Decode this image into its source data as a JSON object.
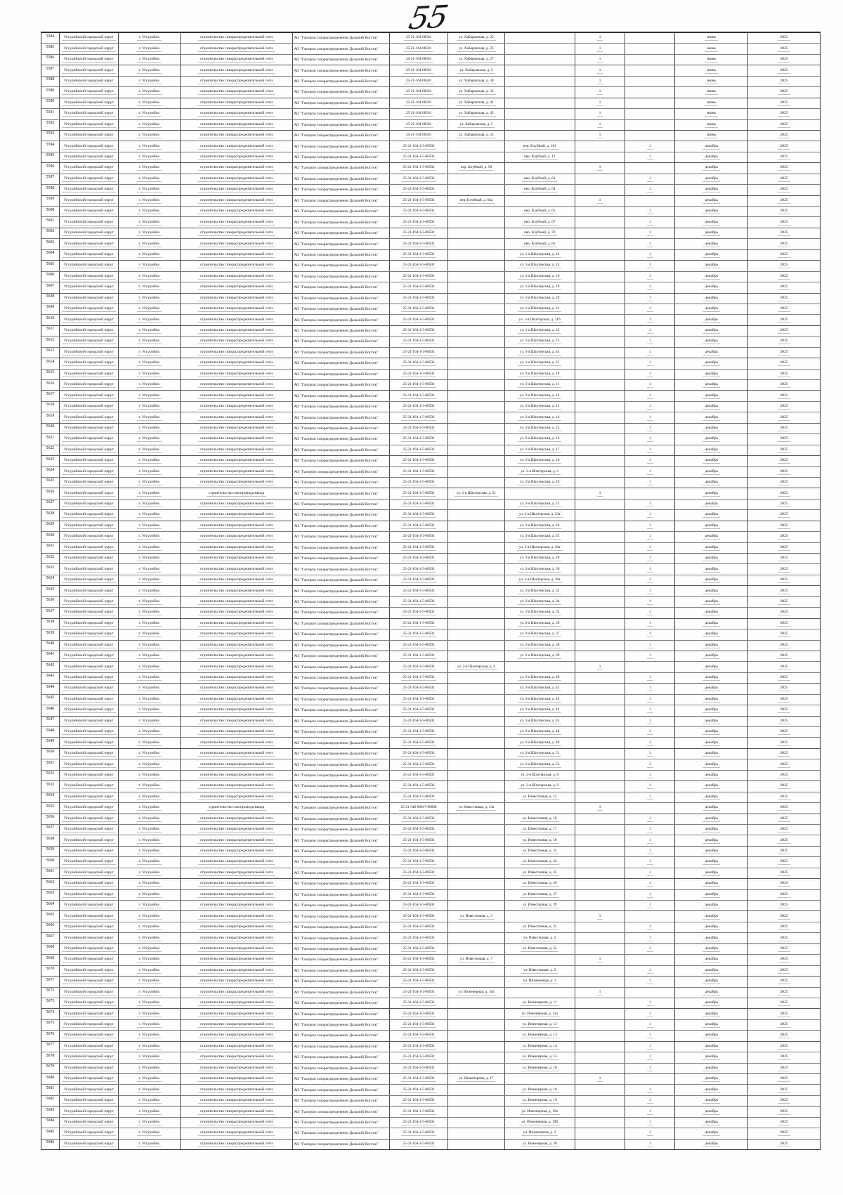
{
  "page_number": "55",
  "table": {
    "shared": {
      "district": "Уссурийский городской округ",
      "city": "г. Уссурийск",
      "work_default": "строительство газораспределительной сети",
      "work_alt": "строительство газопровода-ввода",
      "organization": "АО \"Газпром газораспределение Дальний Восток\"",
      "count": "1"
    },
    "row_fields": [
      "number",
      "code",
      "address",
      "address_column_a_or_b",
      "month",
      "year",
      "work_variant"
    ],
    "rows": [
      [
        "5584",
        "25-21-164-00501",
        "ул. Хабаровская, д. 22",
        "a",
        "июнь",
        "2025"
      ],
      [
        "5585",
        "25-21-164-00501",
        "ул. Хабаровская, д. 25",
        "a",
        "июнь",
        "2025"
      ],
      [
        "5586",
        "25-21-164-00501",
        "ул. Хабаровская, д. 27",
        "a",
        "июнь",
        "2025"
      ],
      [
        "5587",
        "25-21-164-00501",
        "ул. Хабаровская, д. 3",
        "a",
        "июнь",
        "2025"
      ],
      [
        "5588",
        "25-21-164-00501",
        "ул. Хабаровская, д. 30",
        "a",
        "июнь",
        "2025"
      ],
      [
        "5589",
        "25-21-164-00501",
        "ул. Хабаровская, д. 35",
        "a",
        "июнь",
        "2025"
      ],
      [
        "5590",
        "25-21-164-00501",
        "ул. Хабаровская, д. 41",
        "a",
        "июнь",
        "2025"
      ],
      [
        "5591",
        "25-21-164-00501",
        "ул. Хабаровская, д. 45",
        "a",
        "июнь",
        "2025"
      ],
      [
        "5592",
        "25-21-164-00501",
        "ул. Хабаровская, д. 5",
        "a",
        "июнь",
        "2025"
      ],
      [
        "5593",
        "25-21-164-00501",
        "ул. Хабаровская, д. 55",
        "a",
        "июнь",
        "2025"
      ],
      [
        "5594",
        "25-21-164-1-5-00502",
        "пер. Клубный, д. 101",
        "b",
        "декабрь",
        "2025"
      ],
      [
        "5595",
        "25-21-164-1-5-00502",
        "пер. Клубный, д. 12",
        "b",
        "декабрь",
        "2025"
      ],
      [
        "5596",
        "25-21-164-1-5-00502",
        "пер. Клубный, д. 58",
        "a",
        "декабрь",
        "2025"
      ],
      [
        "5597",
        "25-21-164-1-5-00502",
        "пер. Клубный, д. 63",
        "b",
        "декабрь",
        "2025"
      ],
      [
        "5598",
        "25-21-164-1-5-00502",
        "пер. Клубный, д. 64",
        "b",
        "декабрь",
        "2025"
      ],
      [
        "5599",
        "25-21-164-1-5-00502",
        "пер. Клубный, д. 64а",
        "a",
        "декабрь",
        "2025"
      ],
      [
        "5600",
        "25-21-164-1-5-00502",
        "пер. Клубный, д. 65",
        "b",
        "декабрь",
        "2025"
      ],
      [
        "5601",
        "25-21-164-1-5-00502",
        "пер. Клубный, д. 67",
        "b",
        "декабрь",
        "2025"
      ],
      [
        "5602",
        "25-21-164-1-5-00502",
        "пер. Клубный, д. 70",
        "b",
        "декабрь",
        "2025"
      ],
      [
        "5603",
        "25-21-164-1-5-00502",
        "пер. Клубный, д. 81",
        "b",
        "декабрь",
        "2025"
      ],
      [
        "5604",
        "25-21-164-1-5-00502",
        "ул. 1-я Шахтерская, д. 14",
        "b",
        "декабрь",
        "2025"
      ],
      [
        "5605",
        "25-21-164-1-5-00502",
        "ул. 1-я Шахтерская, д. 15",
        "b",
        "декабрь",
        "2025"
      ],
      [
        "5606",
        "25-21-164-1-5-00502",
        "ул. 1-я Шахтерская, д. 16",
        "b",
        "декабрь",
        "2025"
      ],
      [
        "5607",
        "25-21-164-1-5-00502",
        "ул. 1-я Шахтерская, д. 18",
        "b",
        "декабрь",
        "2025"
      ],
      [
        "5608",
        "25-21-164-1-5-00502",
        "ул. 1-я Шахтерская, д. 20",
        "b",
        "декабрь",
        "2025"
      ],
      [
        "5609",
        "25-21-164-1-5-00502",
        "ул. 1-я Шахтерская, д. 21",
        "b",
        "декабрь",
        "2025"
      ],
      [
        "5610",
        "25-21-164-1-5-00502",
        "ул. 1-я Шахтерская, д. 21б",
        "b",
        "декабрь",
        "2025"
      ],
      [
        "5611",
        "25-21-164-1-5-00502",
        "ул. 1-я Шахтерская, д. 22",
        "b",
        "декабрь",
        "2025"
      ],
      [
        "5612",
        "25-21-164-1-5-00502",
        "ул. 1-я Шахтерская, д. 23",
        "b",
        "декабрь",
        "2025"
      ],
      [
        "5613",
        "25-21-164-1-5-00502",
        "ул. 1-я Шахтерская, д. 24",
        "b",
        "декабрь",
        "2025"
      ],
      [
        "5614",
        "25-21-164-1-5-00502",
        "ул. 1-я Шахтерская, д. 25",
        "b",
        "декабрь",
        "2025"
      ],
      [
        "5615",
        "25-21-164-1-5-00502",
        "ул. 2-я Шахтерская, д. 10",
        "b",
        "декабрь",
        "2025"
      ],
      [
        "5616",
        "25-21-164-1-5-00502",
        "ул. 2-я Шахтерская, д. 11",
        "b",
        "декабрь",
        "2025"
      ],
      [
        "5617",
        "25-21-164-1-5-00502",
        "ул. 2-я Шахтерская, д. 12",
        "b",
        "декабрь",
        "2025"
      ],
      [
        "5618",
        "25-21-164-1-5-00502",
        "ул. 2-я Шахтерская, д. 13",
        "b",
        "декабрь",
        "2025"
      ],
      [
        "5619",
        "25-21-164-1-5-00502",
        "ул. 2-я Шахтерская, д. 14",
        "b",
        "декабрь",
        "2025"
      ],
      [
        "5620",
        "25-21-164-1-5-00502",
        "ул. 2-я Шахтерская, д. 15",
        "b",
        "декабрь",
        "2025"
      ],
      [
        "5621",
        "25-21-164-1-5-00502",
        "ул. 2-я Шахтерская, д. 16",
        "b",
        "декабрь",
        "2025"
      ],
      [
        "5622",
        "25-21-164-1-5-00502",
        "ул. 2-я Шахтерская, д. 17",
        "b",
        "декабрь",
        "2025"
      ],
      [
        "5623",
        "25-21-164-1-5-00502",
        "ул. 2-я Шахтерская, д. 18",
        "b",
        "декабрь",
        "2025"
      ],
      [
        "5624",
        "25-21-164-1-5-00502",
        "ул. 2-я Шахтерская, д. 2",
        "b",
        "декабрь",
        "2025"
      ],
      [
        "5625",
        "25-21-164-1-5-00502",
        "ул. 2-я Шахтерская, д. 20",
        "b",
        "декабрь",
        "2025"
      ],
      [
        "5626",
        "25-21-164-1-5-00502",
        "ул. 2-я Шахтерская, д. 21",
        "a",
        "декабрь",
        "2025",
        "alt"
      ],
      [
        "5627",
        "25-21-164-1-5-00502",
        "ул. 2-я Шахтерская, д. 22",
        "b",
        "декабрь",
        "2025"
      ],
      [
        "5628",
        "25-21-164-1-5-00502",
        "ул. 2-я Шахтерская, д. 23а",
        "b",
        "декабрь",
        "2025"
      ],
      [
        "5629",
        "25-21-164-1-5-00502",
        "ул. 2-я Шахтерская, д. 24",
        "b",
        "декабрь",
        "2025"
      ],
      [
        "5630",
        "25-21-164-1-5-00502",
        "ул. 2-я Шахтерская, д. 25",
        "b",
        "декабрь",
        "2025"
      ],
      [
        "5631",
        "25-21-164-1-5-00502",
        "ул. 2-я Шахтерская, д. 26а",
        "b",
        "декабрь",
        "2025"
      ],
      [
        "5632",
        "25-21-164-1-5-00502",
        "ул. 2-я Шахтерская, д. 28",
        "b",
        "декабрь",
        "2025"
      ],
      [
        "5633",
        "25-21-164-1-5-00502",
        "ул. 2-я Шахтерская, д. 30",
        "b",
        "декабрь",
        "2025"
      ],
      [
        "5634",
        "25-21-164-1-5-00502",
        "ул. 2-я Шахтерская, д. 30а",
        "b",
        "декабрь",
        "2025"
      ],
      [
        "5635",
        "25-21-164-1-5-00502",
        "ул. 2-я Шахтерская, д. 32",
        "b",
        "декабрь",
        "2025"
      ],
      [
        "5636",
        "25-21-164-1-5-00502",
        "ул. 2-я Шахтерская, д. 34",
        "b",
        "декабрь",
        "2025"
      ],
      [
        "5637",
        "25-21-164-1-5-00502",
        "ул. 2-я Шахтерская, д. 35",
        "b",
        "декабрь",
        "2025"
      ],
      [
        "5638",
        "25-21-164-1-5-00502",
        "ул. 2-я Шахтерская, д. 36",
        "b",
        "декабрь",
        "2025"
      ],
      [
        "5639",
        "25-21-164-1-5-00502",
        "ул. 2-я Шахтерская, д. 37",
        "b",
        "декабрь",
        "2025"
      ],
      [
        "5640",
        "25-21-164-1-5-00502",
        "ул. 2-я Шахтерская, д. 38",
        "b",
        "декабрь",
        "2025"
      ],
      [
        "5641",
        "25-21-164-1-5-00502",
        "ул. 2-я Шахтерская, д. 39",
        "b",
        "декабрь",
        "2025"
      ],
      [
        "5642",
        "25-21-164-1-5-00502",
        "ул. 2-я Шахтерская, д. 4",
        "a",
        "декабрь",
        "2025"
      ],
      [
        "5643",
        "25-21-164-1-5-00502",
        "ул. 2-я Шахтерская, д. 40",
        "b",
        "декабрь",
        "2025"
      ],
      [
        "5644",
        "25-21-164-1-5-00502",
        "ул. 2-я Шахтерская, д. 41",
        "b",
        "декабрь",
        "2025"
      ],
      [
        "5645",
        "25-21-164-1-5-00502",
        "ул. 2-я Шахтерская, д. 42",
        "b",
        "декабрь",
        "2025"
      ],
      [
        "5646",
        "25-21-164-1-5-00502",
        "ул. 2-я Шахтерская, д. 44",
        "b",
        "декабрь",
        "2025"
      ],
      [
        "5647",
        "25-21-164-1-5-00502",
        "ул. 2-я Шахтерская, д. 45",
        "b",
        "декабрь",
        "2025"
      ],
      [
        "5648",
        "25-21-164-1-5-00502",
        "ул. 2-я Шахтерская, д. 48",
        "b",
        "декабрь",
        "2025"
      ],
      [
        "5649",
        "25-21-164-1-5-00502",
        "ул. 2-я Шахтерская, д. 49",
        "b",
        "декабрь",
        "2025"
      ],
      [
        "5650",
        "25-21-164-1-5-00502",
        "ул. 2-я Шахтерская, д. 51",
        "b",
        "декабрь",
        "2025"
      ],
      [
        "5651",
        "25-21-164-1-5-00502",
        "ул. 2-я Шахтерская, д. 53",
        "b",
        "декабрь",
        "2025"
      ],
      [
        "5652",
        "25-21-164-1-5-00502",
        "ул. 2-я Шахтерская, д. 8",
        "b",
        "декабрь",
        "2025"
      ],
      [
        "5653",
        "25-21-164-1-5-00502",
        "ул. 2-я Шахтерская, д. 9",
        "b",
        "декабрь",
        "2025"
      ],
      [
        "5654",
        "25-21-164-1-5-00502",
        "ул. Известковая, д. 13",
        "b",
        "декабрь",
        "2025"
      ],
      [
        "5655",
        "25-21-548-09617-00000",
        "ул. Известковая, д. 13а",
        "a",
        "декабрь",
        "2025",
        "alt"
      ],
      [
        "5656",
        "25-21-164-1-5-00502",
        "ул. Известковая, д. 16",
        "b",
        "декабрь",
        "2025"
      ],
      [
        "5657",
        "25-21-164-1-5-00502",
        "ул. Известковая, д. 17",
        "b",
        "декабрь",
        "2025"
      ],
      [
        "5658",
        "25-21-164-1-5-00502",
        "ул. Известковая, д. 18",
        "b",
        "декабрь",
        "2025"
      ],
      [
        "5659",
        "25-21-164-1-5-00502",
        "ул. Известковая, д. 23",
        "b",
        "декабрь",
        "2025"
      ],
      [
        "5660",
        "25-21-164-1-5-00502",
        "ул. Известковая, д. 24",
        "b",
        "декабрь",
        "2025"
      ],
      [
        "5661",
        "25-21-164-1-5-00502",
        "ул. Известковая, д. 25",
        "b",
        "декабрь",
        "2025"
      ],
      [
        "5662",
        "25-21-164-1-5-00502",
        "ул. Известковая, д. 26",
        "b",
        "декабрь",
        "2025"
      ],
      [
        "5663",
        "25-21-164-1-5-00502",
        "ул. Известковая, д. 27",
        "b",
        "декабрь",
        "2025"
      ],
      [
        "5664",
        "25-21-164-1-5-00502",
        "ул. Известковая, д. 29",
        "b",
        "декабрь",
        "2025"
      ],
      [
        "5665",
        "25-21-164-1-5-00502",
        "ул. Известковая, д. 3",
        "a",
        "декабрь",
        "2025"
      ],
      [
        "5666",
        "25-21-164-1-5-00502",
        "ул. Известковая, д. 31",
        "b",
        "декабрь",
        "2025"
      ],
      [
        "5667",
        "25-21-164-1-5-00502",
        "ул. Известковая, д. 5",
        "b",
        "декабрь",
        "2025"
      ],
      [
        "5668",
        "25-21-164-1-5-00502",
        "ул. Известковая, д. 5а",
        "b",
        "декабрь",
        "2025"
      ],
      [
        "5669",
        "25-21-164-1-5-00502",
        "ул. Известковая, д. 7",
        "a",
        "декабрь",
        "2025"
      ],
      [
        "5670",
        "25-21-164-1-5-00502",
        "ул. Известковая, д. 9",
        "b",
        "декабрь",
        "2025"
      ],
      [
        "5671",
        "25-21-164-1-5-00502",
        "ул. Инженерная, д. 1",
        "b",
        "декабрь",
        "2025"
      ],
      [
        "5672",
        "25-21-164-1-5-00502",
        "ул. Инженерная, д. 10а",
        "a",
        "декабрь",
        "2025"
      ],
      [
        "5673",
        "25-21-164-1-5-00502",
        "ул. Инженерная, д. 11",
        "b",
        "декабрь",
        "2025"
      ],
      [
        "5674",
        "25-21-164-1-5-00502",
        "ул. Инженерная, д. 11а",
        "b",
        "декабрь",
        "2025"
      ],
      [
        "5675",
        "25-21-164-1-5-00502",
        "ул. Инженерная, д. 12",
        "b",
        "декабрь",
        "2025"
      ],
      [
        "5676",
        "25-21-164-1-5-00502",
        "ул. Инженерная, д. 13",
        "b",
        "декабрь",
        "2025"
      ],
      [
        "5677",
        "25-21-164-1-5-00502",
        "ул. Инженерная, д. 14",
        "b",
        "декабрь",
        "2025"
      ],
      [
        "5678",
        "25-21-164-1-5-00502",
        "ул. Инженерная, д. 15",
        "b",
        "декабрь",
        "2025"
      ],
      [
        "5679",
        "25-21-164-1-5-00502",
        "ул. Инженерная, д. 16",
        "b",
        "декабрь",
        "2025"
      ],
      [
        "5680",
        "25-21-164-1-5-00502",
        "ул. Инженерная, д. 17",
        "a",
        "декабрь",
        "2025"
      ],
      [
        "5681",
        "25-21-164-1-5-00502",
        "ул. Инженерная, д. 18",
        "b",
        "декабрь",
        "2025"
      ],
      [
        "5682",
        "25-21-164-1-5-00502",
        "ул. Инженерная, д. 19",
        "b",
        "декабрь",
        "2025"
      ],
      [
        "5683",
        "25-21-164-1-5-00502",
        "ул. Инженерная, д. 19а",
        "b",
        "декабрь",
        "2025"
      ],
      [
        "5684",
        "25-21-164-1-5-00502",
        "ул. Инженерная, д. 19б",
        "b",
        "декабрь",
        "2025"
      ],
      [
        "5685",
        "25-21-164-1-5-00502",
        "ул. Инженерная, д. 2",
        "b",
        "декабрь",
        "2025"
      ],
      [
        "5686",
        "25-21-164-1-5-00502",
        "ул. Инженерная, д. 20",
        "b",
        "декабрь",
        "2025"
      ]
    ]
  }
}
